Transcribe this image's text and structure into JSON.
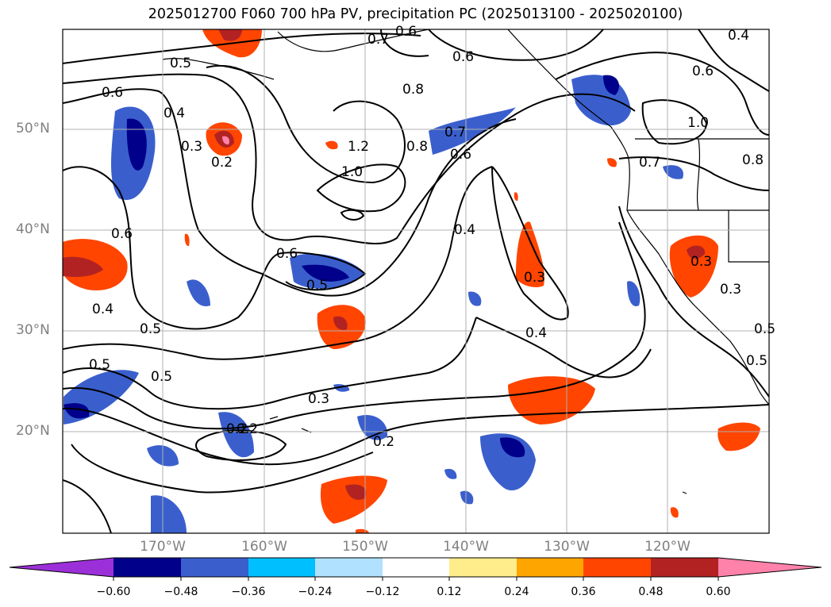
{
  "title": "2025012700 F060 700 hPa PV, precipitation PC (2025013100 - 2025020100)",
  "lat_labels": [
    "50°N",
    "40°N",
    "30°N",
    "20°N"
  ],
  "lon_labels": [
    "170°W",
    "160°W",
    "150°W",
    "140°W",
    "130°W",
    "120°W"
  ],
  "colorbar": {
    "ticks": [
      "−0.60",
      "−0.48",
      "−0.36",
      "−0.24",
      "−0.12",
      "0.12",
      "0.24",
      "0.36",
      "0.48",
      "0.60"
    ],
    "colors": [
      "#9b30d9",
      "#00008b",
      "#3a5fcd",
      "#00bfff",
      "#b0e2ff",
      "#ffffff",
      "#ffec8b",
      "#ffa500",
      "#ff4500",
      "#b22222",
      "#ff82ab"
    ]
  },
  "contour_labels": [
    "0.5",
    "0.6",
    "0.7",
    "0.8",
    "1.0",
    "1.2",
    "0.4",
    "0.3",
    "0.2",
    "0.6",
    "0.8",
    "0.7",
    "0.6",
    "0.4",
    "0.3",
    "0.4",
    "0.5",
    "0.6",
    "0.4",
    "0.5",
    "0.5",
    "0.5",
    "0.3",
    "0.2",
    "0.2",
    "0.6",
    "1.0",
    "0.7",
    "0.8",
    "0.3",
    "0.4",
    "0.6",
    "0.2",
    "0.5",
    "0.3",
    "0.5",
    "0.6"
  ]
}
